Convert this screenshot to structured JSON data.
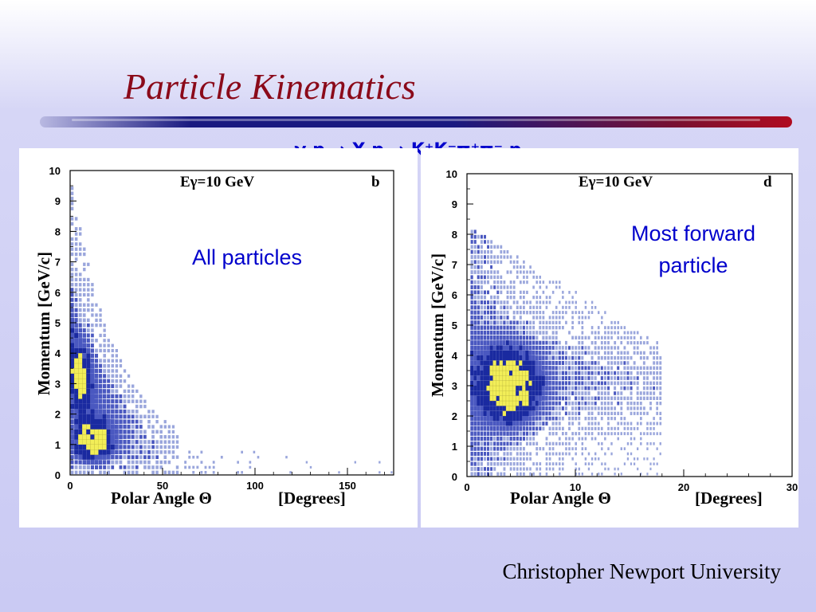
{
  "slide": {
    "title": "Particle Kinematics",
    "reaction": "γ p  → X  p → K⁺K⁻π⁺π⁻ p",
    "footer": "Christopher Newport University"
  },
  "colors": {
    "title": "#8b0a1a",
    "accent_text": "#0000cc",
    "low_density": "#9aa6dc",
    "mid_density": "#1a2aa0",
    "high_density": "#f2ee58"
  },
  "chart_data": [
    {
      "type": "heatmap",
      "panel_label": "b",
      "energy_label": "Eγ=10 GeV",
      "annotation": "All particles",
      "xlabel": "Polar Angle Θ",
      "xlabel_units": "[Degrees]",
      "ylabel": "Momentum  [GeV/c]",
      "xlim": [
        0,
        175
      ],
      "ylim": [
        0,
        10
      ],
      "xticks": [
        0,
        50,
        100,
        150
      ],
      "yticks": [
        0,
        1,
        2,
        3,
        4,
        5,
        6,
        7,
        8,
        9,
        10
      ],
      "peaks": [
        {
          "theta": 12,
          "momentum": 1.1,
          "intensity": "high"
        },
        {
          "theta": 5,
          "momentum": 3.0,
          "intensity": "medium"
        }
      ]
    },
    {
      "type": "heatmap",
      "panel_label": "d",
      "energy_label": "Eγ=10 GeV",
      "annotation": "Most forward particle",
      "xlabel": "Polar Angle Θ",
      "xlabel_units": "[Degrees]",
      "ylabel": "Momentum  [GeV/c]",
      "xlim": [
        0,
        30
      ],
      "ylim": [
        0,
        10
      ],
      "xticks": [
        0,
        10,
        20,
        30
      ],
      "yticks": [
        0,
        1,
        2,
        3,
        4,
        5,
        6,
        7,
        8,
        9,
        10
      ],
      "peaks": [
        {
          "theta": 4,
          "momentum": 3.0,
          "intensity": "high"
        }
      ]
    }
  ]
}
